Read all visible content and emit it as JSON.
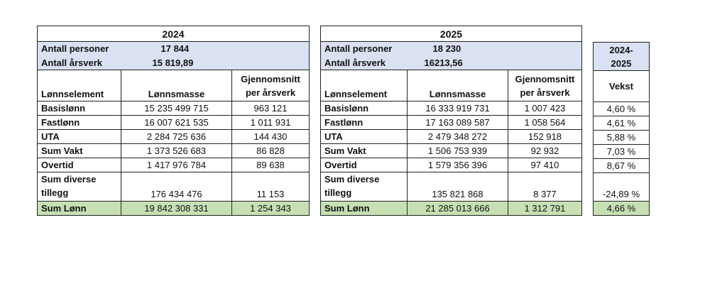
{
  "table_2024": {
    "year": "2024",
    "persons_label": "Antall personer",
    "persons_value": "17 844",
    "fte_label": "Antall årsverk",
    "fte_value": "15 819,89",
    "headers": [
      "Lønnselement",
      "Lønnsmasse",
      "Gjennomsnitt per årsverk"
    ],
    "rows": [
      {
        "label": "Basislønn",
        "mass": "15 235 499 715",
        "avg": "963 121"
      },
      {
        "label": "Fastlønn",
        "mass": "16 007 621 535",
        "avg": "1 011 931"
      },
      {
        "label": "UTA",
        "mass": "2 284 725 636",
        "avg": "144 430"
      },
      {
        "label": "Sum Vakt",
        "mass": "1 373 526 683",
        "avg": "86 828"
      },
      {
        "label": "Overtid",
        "mass": "1 417 976 784",
        "avg": "89 638"
      },
      {
        "label": "Sum diverse tillegg",
        "mass": "176 434 476",
        "avg": "11 153"
      }
    ],
    "total": {
      "label": "Sum Lønn",
      "mass": "19 842 308 331",
      "avg": "1 254 343"
    }
  },
  "table_2025": {
    "year": "2025",
    "persons_label": "Antall personer",
    "persons_value": "18 230",
    "fte_label": "Antall årsverk",
    "fte_value": "16213,56",
    "headers": [
      "Lønnselement",
      "Lønnsmasse",
      "Gjennomsnitt per årsverk"
    ],
    "rows": [
      {
        "label": "Basislønn",
        "mass": "16 333 919 731",
        "avg": "1 007 423"
      },
      {
        "label": "Fastlønn",
        "mass": "17 163 089 587",
        "avg": "1 058 564"
      },
      {
        "label": "UTA",
        "mass": "2 479 348 272",
        "avg": "152 918"
      },
      {
        "label": "Sum Vakt",
        "mass": "1 506 753 939",
        "avg": "92 932"
      },
      {
        "label": "Overtid",
        "mass": "1 579 356 396",
        "avg": "97 410"
      },
      {
        "label": "Sum diverse tillegg",
        "mass": "135 821 868",
        "avg": "8 377"
      }
    ],
    "total": {
      "label": "Sum Lønn",
      "mass": "21 285 013 666",
      "avg": "1 312 791"
    }
  },
  "growth": {
    "period": "2024-2025",
    "header": "Vekst",
    "values": [
      "4,60 %",
      "4,61 %",
      "5,88 %",
      "7,03 %",
      "8,67 %",
      "-24,89 %"
    ],
    "total": "4,66 %"
  },
  "colors": {
    "info_bg": "#d9e1f2",
    "total_bg": "#c6e0b4"
  }
}
